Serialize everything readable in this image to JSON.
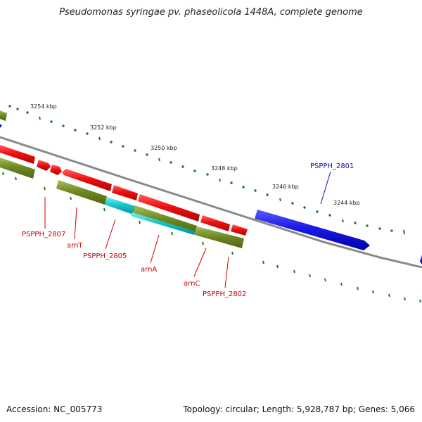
{
  "title": "Pseudomonas syringae pv. phaseolicola 1448A, complete genome",
  "footer": {
    "accession": "Accession: NC_005773",
    "summary": "Topology: circular; Length: 5,928,787 bp; Genes: 5,066"
  },
  "colors": {
    "backbone": "#8a8a8a",
    "tick": "#1e7a1e",
    "gene_red": "#ee1111",
    "gene_olive": "#6f8a24",
    "gene_cyan": "#16c4cc",
    "gene_blue": "#1a1ae6",
    "label_red": "#cc0000",
    "label_blue": "#1010c0"
  },
  "scale_labels": [
    "3254 kbp",
    "3252 kbp",
    "3250 kbp",
    "3248 kbp",
    "3246 kbp",
    "3244 kbp"
  ],
  "gene_labels": [
    {
      "text": "PSPPH_2807",
      "color": "red"
    },
    {
      "text": "arnT",
      "color": "red"
    },
    {
      "text": "PSPPH_2805",
      "color": "red"
    },
    {
      "text": "arnA",
      "color": "red"
    },
    {
      "text": "arnC",
      "color": "red"
    },
    {
      "text": "PSPPH_2802",
      "color": "red"
    },
    {
      "text": "PSPPH_2801",
      "color": "blue"
    }
  ]
}
